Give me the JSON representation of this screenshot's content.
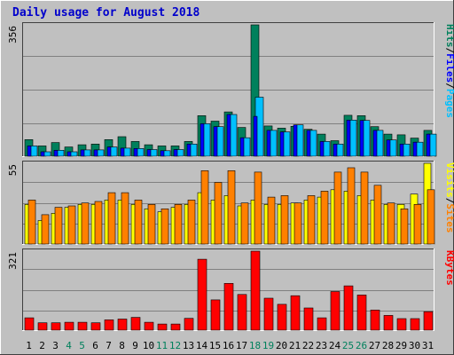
{
  "chart_data": {
    "type": "bar",
    "title": "Daily usage for August 2018",
    "days": [
      "1",
      "2",
      "3",
      "4",
      "5",
      "6",
      "7",
      "8",
      "9",
      "10",
      "11",
      "12",
      "13",
      "14",
      "15",
      "16",
      "17",
      "18",
      "19",
      "20",
      "21",
      "22",
      "23",
      "24",
      "25",
      "26",
      "27",
      "28",
      "29",
      "30",
      "31"
    ],
    "weekend_days": [
      "4",
      "5",
      "11",
      "12",
      "18",
      "19",
      "25",
      "26"
    ],
    "panels": [
      {
        "id": "hits-files-pages",
        "ymax_label": "356",
        "ymax": 356,
        "label_parts": [
          "Pages",
          "/",
          "Files",
          "/",
          "Hits"
        ],
        "series": [
          {
            "name": "Hits",
            "color": "#00805c",
            "values": [
              45,
              28,
              37,
              25,
              31,
              33,
              45,
              53,
              40,
              31,
              28,
              28,
              40,
              110,
              95,
              120,
              78,
              356,
              82,
              76,
              81,
              73,
              60,
              42,
              111,
              110,
              80,
              60,
              58,
              49,
              70
            ]
          },
          {
            "name": "Files",
            "color": "#0000ff",
            "values": [
              28,
              12,
              16,
              12,
              17,
              17,
              25,
              22,
              21,
              18,
              15,
              18,
              33,
              88,
              80,
              113,
              50,
              108,
              70,
              66,
              85,
              70,
              40,
              33,
              98,
              97,
              70,
              44,
              33,
              38,
              60
            ]
          },
          {
            "name": "Pages",
            "color": "#00c0ff",
            "values": [
              28,
              12,
              16,
              12,
              17,
              17,
              25,
              22,
              21,
              18,
              15,
              18,
              33,
              88,
              80,
              113,
              50,
              160,
              70,
              66,
              85,
              70,
              40,
              33,
              98,
              97,
              70,
              44,
              33,
              38,
              60
            ]
          }
        ]
      },
      {
        "id": "visits-sites",
        "ymax_label": "55",
        "ymax": 55,
        "label_parts": [
          "Sites",
          "/",
          "Visits"
        ],
        "series": [
          {
            "name": "Visits",
            "color": "#ffff00",
            "values": [
              27,
              16,
              21,
              25,
              27,
              27,
              30,
              30,
              27,
              24,
              22,
              25,
              27,
              35,
              30,
              33,
              26,
              30,
              27,
              27,
              28,
              30,
              32,
              37,
              36,
              33,
              30,
              27,
              27,
              34,
              55
            ]
          },
          {
            "name": "Sites",
            "color": "#ff8000",
            "values": [
              30,
              20,
              25,
              26,
              28,
              29,
              35,
              35,
              30,
              27,
              24,
              27,
              30,
              50,
              42,
              50,
              28,
              49,
              32,
              33,
              28,
              33,
              36,
              49,
              52,
              49,
              40,
              28,
              24,
              27,
              37
            ]
          }
        ]
      },
      {
        "id": "kbytes",
        "ymax_label": "321",
        "ymax": 321,
        "label_parts": [
          "KBytes"
        ],
        "series": [
          {
            "name": "KBytes",
            "color": "#ff0000",
            "values": [
              50,
              30,
              30,
              32,
              32,
              30,
              42,
              45,
              52,
              32,
              25,
              25,
              48,
              288,
              123,
              190,
              145,
              321,
              130,
              105,
              140,
              90,
              50,
              157,
              180,
              143,
              82,
              60,
              47,
              47,
              75
            ]
          }
        ]
      }
    ]
  }
}
